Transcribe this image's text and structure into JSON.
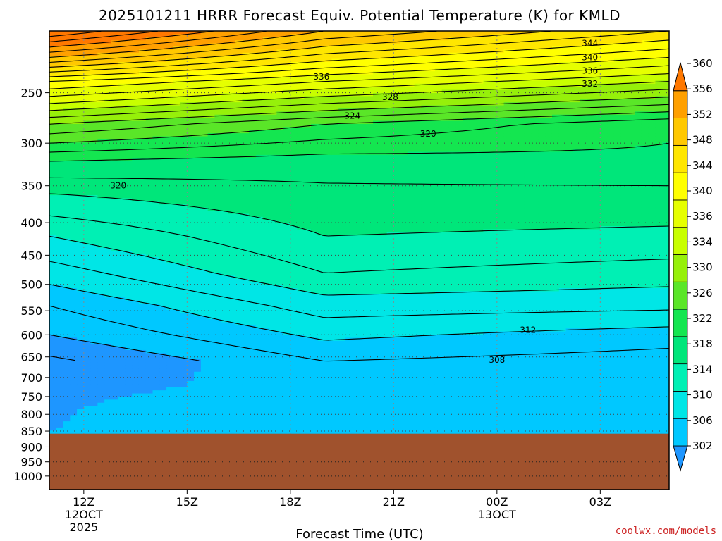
{
  "chart_data": {
    "type": "heatmap",
    "title": "2025101211 HRRR Forecast Equiv. Potential Temperature (K) for KMLD",
    "xlabel": "Forecast Time (UTC)",
    "ylabel": "",
    "x_ticks": [
      {
        "hour": 0,
        "label": "12Z",
        "sub": [
          "12OCT",
          "2025"
        ]
      },
      {
        "hour": 3,
        "label": "15Z",
        "sub": []
      },
      {
        "hour": 6,
        "label": "18Z",
        "sub": []
      },
      {
        "hour": 9,
        "label": "21Z",
        "sub": []
      },
      {
        "hour": 12,
        "label": "00Z",
        "sub": [
          "13OCT"
        ]
      },
      {
        "hour": 15,
        "label": "03Z",
        "sub": []
      }
    ],
    "x_range_hours": [
      -1,
      17
    ],
    "y_ticks": [
      250,
      300,
      350,
      400,
      450,
      500,
      550,
      600,
      650,
      700,
      750,
      800,
      850,
      900,
      950,
      1000
    ],
    "y_range_hpa": [
      200,
      1050
    ],
    "surface_pressure_hpa": 858,
    "colorbar_levels": [
      302,
      306,
      310,
      314,
      318,
      322,
      326,
      330,
      334,
      336,
      340,
      344,
      348,
      352,
      356,
      360
    ],
    "colorbar_colors": [
      "#1e96ff",
      "#00c8ff",
      "#00e6e6",
      "#00f0b4",
      "#00e67a",
      "#14e650",
      "#5ae628",
      "#96f00a",
      "#c8ff00",
      "#e6ff00",
      "#ffff00",
      "#ffe600",
      "#ffc800",
      "#ffa000",
      "#ff7800"
    ],
    "contour_labels": [
      {
        "value": "344",
        "hour": 14.7,
        "hpa": 209
      },
      {
        "value": "340",
        "hour": 14.7,
        "hpa": 220
      },
      {
        "value": "336",
        "hour": 14.7,
        "hpa": 231
      },
      {
        "value": "332",
        "hour": 14.7,
        "hpa": 242
      },
      {
        "value": "336",
        "hour": 6.9,
        "hpa": 236
      },
      {
        "value": "328",
        "hour": 8.9,
        "hpa": 254
      },
      {
        "value": "324",
        "hour": 7.8,
        "hpa": 272
      },
      {
        "value": "320",
        "hour": 10.0,
        "hpa": 290
      },
      {
        "value": "320",
        "hour": 1.0,
        "hpa": 350
      },
      {
        "value": "312",
        "hour": 12.9,
        "hpa": 590
      },
      {
        "value": "308",
        "hour": 12.0,
        "hpa": 657
      }
    ],
    "surface_color": "#a0522d",
    "series": []
  },
  "credit": "coolwx.com/models"
}
